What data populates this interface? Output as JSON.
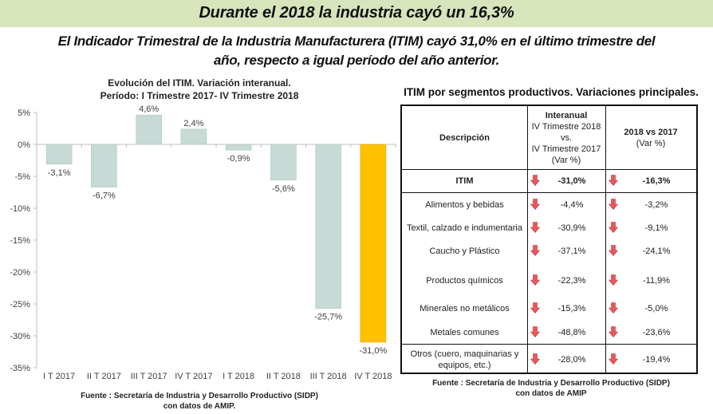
{
  "header": {
    "title": "Durante el 2018 la industria cayó un 16,3%",
    "subtitle_line1": "El Indicador Trimestral de la Industria Manufacturera (ITIM) cayó 31,0% en el último trimestre del",
    "subtitle_line2": "año, respecto a igual período del año anterior."
  },
  "chart_data": {
    "type": "bar",
    "title_line1": "Evolución del ITIM. Variación interanual.",
    "title_line2": "Período: I Trimestre 2017- IV Trimestre 2018",
    "categories": [
      "I T 2017",
      "II T 2017",
      "III T 2017",
      "IV T 2017",
      "I T 2018",
      "II T 2018",
      "III T 2018",
      "IV T 2018"
    ],
    "values": [
      -3.1,
      -6.7,
      4.6,
      2.4,
      -0.9,
      -5.6,
      -25.7,
      -31.0
    ],
    "value_labels": [
      "-3,1%",
      "-6,7%",
      "4,6%",
      "2,4%",
      "-0,9%",
      "-5,6%",
      "-25,7%",
      "-31,0%"
    ],
    "ylim": [
      -35,
      5
    ],
    "yticks": [
      5,
      0,
      -5,
      -10,
      -15,
      -20,
      -25,
      -30,
      -35
    ],
    "ytick_labels": [
      "5%",
      "0%",
      "-5%",
      "-10%",
      "-15%",
      "-20%",
      "-25%",
      "-30%",
      "-35%"
    ],
    "xlabel": "",
    "ylabel": "",
    "grid": false,
    "colors": {
      "default": "#c7dad5",
      "highlight": "#ffc000",
      "axis": "#bfbfbf"
    },
    "highlight_index": 7,
    "source_line1": "Fuente : Secretaría de Industria y Desarrollo Productivo (SIDP)",
    "source_line2": "con datos de AMIP."
  },
  "table": {
    "title": "ITIM por segmentos productivos. Variaciones principales.",
    "headers": {
      "description": "Descripción",
      "interanual_title": "Interanual",
      "interanual_line2": "IV Trimestre 2018",
      "interanual_line3": "vs.",
      "interanual_line4": "IV Trimestre 2017",
      "interanual_line5": "(Var %)",
      "annual_title": "2018 vs 2017",
      "annual_line2": "(Var %)"
    },
    "rows": [
      {
        "description": "ITIM",
        "interanual": "-31,0%",
        "annual": "-16,3%"
      },
      {
        "description": "Alimentos y bebidas",
        "interanual": "-4,4%",
        "annual": "-3,2%"
      },
      {
        "description": "Textil, calzado e indumentaria",
        "interanual": "-30,9%",
        "annual": "-9,1%"
      },
      {
        "description": "Caucho y Plástico",
        "interanual": "-37,1%",
        "annual": "-24,1%"
      },
      {
        "description": "Productos químicos",
        "interanual": "-22,3%",
        "annual": "-11,9%"
      },
      {
        "description": "Minerales no metálicos",
        "interanual": "-15,3%",
        "annual": "-5,0%"
      },
      {
        "description": "Metales comunes",
        "interanual": "-48,8%",
        "annual": "-23,6%"
      },
      {
        "description": "Otros (cuero, maquinarias y equipos, etc.)",
        "interanual": "-28,0%",
        "annual": "-19,4%"
      }
    ],
    "arrow_icon": "down-arrow-icon",
    "arrow_color": "#e8585c",
    "source_line1": "Fuente : Secretaría de Industria y Desarrollo Productivo (SIDP)",
    "source_line2": "con datos de AMIP"
  }
}
